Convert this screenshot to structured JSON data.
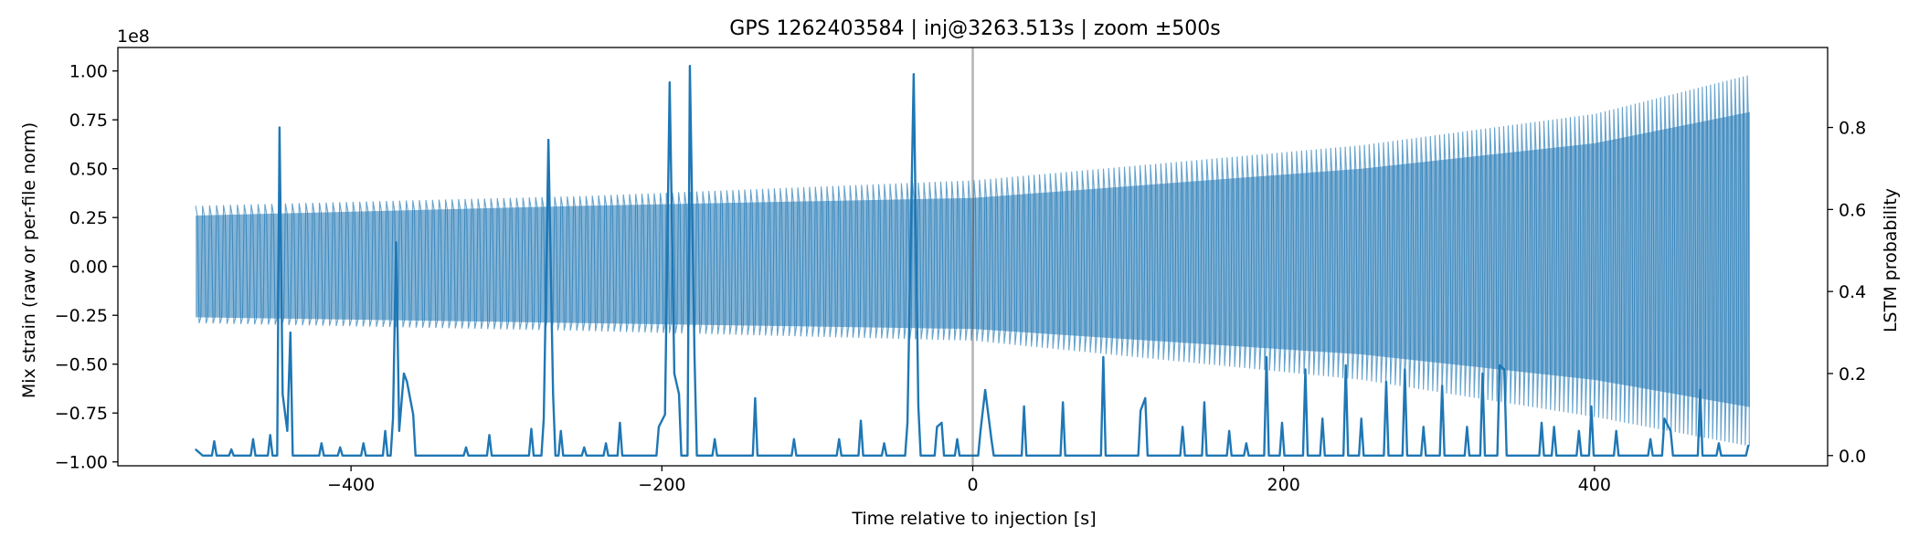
{
  "chart_data": {
    "type": "line",
    "title": "GPS 1262403584 | inj@3263.513s | zoom ±500s",
    "xlabel": "Time relative to injection [s]",
    "ylabel_left": "Mix strain (raw or per-file norm)",
    "ylabel_right": "LSTM probability",
    "left_axis_offset_label": "1e8",
    "xlim": [
      -550,
      550
    ],
    "ylim_left": [
      -1.02,
      1.12
    ],
    "ylim_right": [
      -0.025,
      0.995
    ],
    "x_ticks": [
      -400,
      -200,
      0,
      200,
      400
    ],
    "x_tick_labels": [
      "−400",
      "−200",
      "0",
      "200",
      "400"
    ],
    "y_left_ticks": [
      1.0,
      0.75,
      0.5,
      0.25,
      0.0,
      -0.25,
      -0.5,
      -0.75,
      -1.0
    ],
    "y_left_tick_labels": [
      "1.00",
      "0.75",
      "0.50",
      "0.25",
      "0.00",
      "−0.25",
      "−0.50",
      "−0.75",
      "−1.00"
    ],
    "y_right_ticks": [
      0.8,
      0.6,
      0.4,
      0.2,
      0.0
    ],
    "y_right_tick_labels": [
      "0.8",
      "0.6",
      "0.4",
      "0.2",
      "0.0"
    ],
    "injection_marker_x": 0,
    "series": [
      {
        "name": "Mix strain",
        "axis": "left",
        "color": "#1f77b4",
        "x_range": [
          -500,
          500
        ],
        "envelope_upper": [
          [
            -500,
            0.31
          ],
          [
            -250,
            0.36
          ],
          [
            0,
            0.44
          ],
          [
            250,
            0.62
          ],
          [
            400,
            0.78
          ],
          [
            500,
            0.98
          ]
        ],
        "envelope_lower": [
          [
            -500,
            -0.29
          ],
          [
            -250,
            -0.33
          ],
          [
            0,
            -0.38
          ],
          [
            250,
            -0.58
          ],
          [
            400,
            -0.77
          ],
          [
            500,
            -0.92
          ]
        ],
        "dense_upper": [
          [
            -500,
            0.26
          ],
          [
            -250,
            0.31
          ],
          [
            0,
            0.35
          ],
          [
            250,
            0.5
          ],
          [
            400,
            0.63
          ],
          [
            500,
            0.79
          ]
        ],
        "dense_lower": [
          [
            -500,
            -0.26
          ],
          [
            -250,
            -0.29
          ],
          [
            0,
            -0.32
          ],
          [
            250,
            -0.45
          ],
          [
            400,
            -0.58
          ],
          [
            500,
            -0.72
          ]
        ],
        "chirp_period_start": 4.5,
        "chirp_period_end": 2.6
      },
      {
        "name": "LSTM probability",
        "axis": "right",
        "color": "#1f77b4",
        "baseline": 0.0,
        "points": [
          [
            -500,
            0.015
          ],
          [
            -497,
            0.005
          ],
          [
            -488,
            0.035
          ],
          [
            -477,
            0.015
          ],
          [
            -463,
            0.04
          ],
          [
            -452,
            0.05
          ],
          [
            -446,
            0.8
          ],
          [
            -444,
            0.15
          ],
          [
            -441,
            0.06
          ],
          [
            -439,
            0.3
          ],
          [
            -419,
            0.03
          ],
          [
            -407,
            0.02
          ],
          [
            -392,
            0.03
          ],
          [
            -378,
            0.06
          ],
          [
            -373,
            0.09
          ],
          [
            -371,
            0.52
          ],
          [
            -369,
            0.06
          ],
          [
            -366,
            0.2
          ],
          [
            -364,
            0.18
          ],
          [
            -360,
            0.1
          ],
          [
            -326,
            0.02
          ],
          [
            -311,
            0.05
          ],
          [
            -284,
            0.065
          ],
          [
            -276,
            0.09
          ],
          [
            -273,
            0.77
          ],
          [
            -270,
            0.15
          ],
          [
            -265,
            0.06
          ],
          [
            -250,
            0.02
          ],
          [
            -236,
            0.03
          ],
          [
            -227,
            0.08
          ],
          [
            -202,
            0.07
          ],
          [
            -198,
            0.1
          ],
          [
            -195,
            0.91
          ],
          [
            -192,
            0.2
          ],
          [
            -189,
            0.15
          ],
          [
            -182,
            0.95
          ],
          [
            -179,
            0.24
          ],
          [
            -166,
            0.04
          ],
          [
            -140,
            0.14
          ],
          [
            -115,
            0.04
          ],
          [
            -86,
            0.04
          ],
          [
            -72,
            0.085
          ],
          [
            -57,
            0.03
          ],
          [
            -42,
            0.08
          ],
          [
            -38,
            0.93
          ],
          [
            -35,
            0.12
          ],
          [
            -23,
            0.07
          ],
          [
            -20,
            0.08
          ],
          [
            -10,
            0.04
          ],
          [
            5,
            0.06
          ],
          [
            8,
            0.16
          ],
          [
            12,
            0.04
          ],
          [
            33,
            0.12
          ],
          [
            58,
            0.13
          ],
          [
            84,
            0.24
          ],
          [
            108,
            0.11
          ],
          [
            111,
            0.14
          ],
          [
            135,
            0.07
          ],
          [
            149,
            0.13
          ],
          [
            165,
            0.06
          ],
          [
            176,
            0.03
          ],
          [
            189,
            0.24
          ],
          [
            199,
            0.08
          ],
          [
            214,
            0.21
          ],
          [
            225,
            0.09
          ],
          [
            240,
            0.22
          ],
          [
            250,
            0.09
          ],
          [
            266,
            0.18
          ],
          [
            278,
            0.21
          ],
          [
            290,
            0.07
          ],
          [
            302,
            0.17
          ],
          [
            318,
            0.07
          ],
          [
            328,
            0.2
          ],
          [
            339,
            0.22
          ],
          [
            342,
            0.21
          ],
          [
            366,
            0.08
          ],
          [
            374,
            0.07
          ],
          [
            390,
            0.06
          ],
          [
            398,
            0.12
          ],
          [
            414,
            0.06
          ],
          [
            436,
            0.04
          ],
          [
            445,
            0.09
          ],
          [
            449,
            0.06
          ],
          [
            468,
            0.16
          ],
          [
            480,
            0.03
          ],
          [
            499,
            0.025
          ]
        ]
      }
    ]
  }
}
